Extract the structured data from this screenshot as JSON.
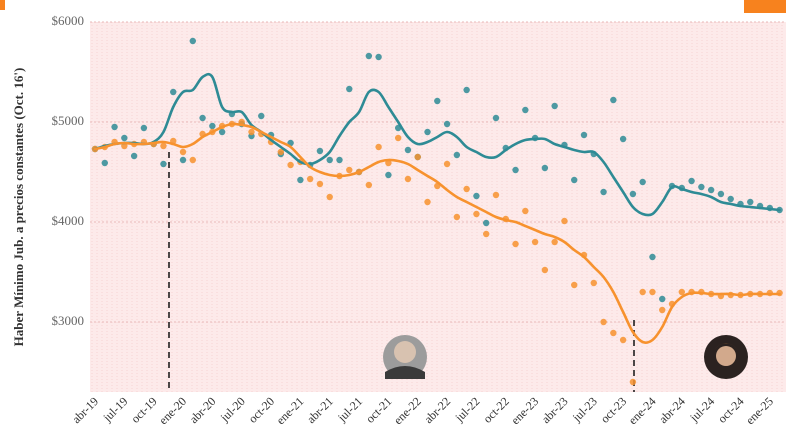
{
  "chart_data": {
    "type": "scatter",
    "y_label": "Haber Mínimo Jub. a precios constantes (Oct. 16')",
    "categories": [
      "abr-19",
      null,
      null,
      "jul-19",
      null,
      null,
      "oct-19",
      null,
      null,
      "ene-20",
      null,
      null,
      "abr-20",
      null,
      null,
      "jul-20",
      null,
      null,
      "oct-20",
      null,
      null,
      "ene-21",
      null,
      null,
      "abr-21",
      null,
      null,
      "jul-21",
      null,
      null,
      "oct-21",
      null,
      null,
      "ene-22",
      null,
      null,
      "abr-22",
      null,
      null,
      "jul-22",
      null,
      null,
      "oct-22",
      null,
      null,
      "ene-23",
      null,
      null,
      "abr-23",
      null,
      null,
      "jul-23",
      null,
      null,
      "oct-23",
      null,
      null,
      "ene-24",
      null,
      null,
      "abr-24",
      null,
      null,
      "jul-24",
      null,
      null,
      "oct-24",
      null,
      null,
      "ene-25",
      null
    ],
    "ylim": [
      2300,
      6000
    ],
    "yticks": [
      {
        "value": 3000,
        "label": "$3000"
      },
      {
        "value": 4000,
        "label": "$4000"
      },
      {
        "value": 5000,
        "label": "$5000"
      },
      {
        "value": 6000,
        "label": "$6000"
      }
    ],
    "series": [
      {
        "color": "#2e8b95",
        "values": [
          4730,
          4590,
          4950,
          4840,
          4660,
          4940,
          4780,
          4580,
          5300,
          4620,
          5810,
          5040,
          4960,
          4900,
          5080,
          4980,
          4860,
          5060,
          4870,
          4680,
          4790,
          4420,
          4570,
          4710,
          4620,
          4620,
          5330,
          4500,
          5660,
          5650,
          4470,
          4940,
          4720,
          4650,
          4900,
          5210,
          4980,
          4670,
          5320,
          4260,
          3990,
          5040,
          4740,
          4520,
          5120,
          4840,
          4540,
          5160,
          4770,
          4420,
          4870,
          4680,
          4300,
          5220,
          4830,
          4280,
          4400,
          3650,
          3230,
          4360,
          4340,
          4410,
          4350,
          4320,
          4280,
          4230,
          4180,
          4200,
          4160,
          4140,
          4120
        ],
        "trend": [
          4730,
          4760,
          4780,
          4790,
          4790,
          4780,
          4800,
          4900,
          5150,
          5300,
          5320,
          5450,
          5450,
          5150,
          5100,
          5100,
          4970,
          4900,
          4820,
          4750,
          4680,
          4600,
          4580,
          4620,
          4700,
          4860,
          5000,
          5100,
          5300,
          5300,
          5150,
          5000,
          4850,
          4780,
          4800,
          4850,
          4900,
          4850,
          4750,
          4700,
          4650,
          4650,
          4720,
          4780,
          4820,
          4830,
          4830,
          4780,
          4750,
          4720,
          4700,
          4700,
          4600,
          4450,
          4300,
          4150,
          4080,
          4080,
          4200,
          4350,
          4330,
          4300,
          4280,
          4250,
          4200,
          4180,
          4160,
          4150,
          4140,
          4130,
          4120
        ]
      },
      {
        "color": "#f7922e",
        "values": [
          4730,
          4750,
          4800,
          4760,
          4780,
          4800,
          4780,
          4760,
          4810,
          4700,
          4620,
          4880,
          4900,
          4960,
          4980,
          5000,
          4900,
          4880,
          4800,
          4700,
          4570,
          4600,
          4430,
          4380,
          4250,
          4460,
          4520,
          4500,
          4370,
          4750,
          4590,
          4840,
          4430,
          4650,
          4200,
          4360,
          4580,
          4050,
          4330,
          4080,
          3880,
          4270,
          4030,
          3780,
          4110,
          3800,
          3520,
          3800,
          4010,
          3370,
          3670,
          3390,
          3000,
          2890,
          2820,
          2400,
          3300,
          3300,
          3120,
          3180,
          3300,
          3300,
          3300,
          3280,
          3260,
          3270,
          3270,
          3280,
          3280,
          3290,
          3290
        ],
        "trend": [
          4730,
          4750,
          4780,
          4790,
          4780,
          4780,
          4790,
          4800,
          4780,
          4750,
          4780,
          4850,
          4900,
          4950,
          4980,
          4970,
          4950,
          4900,
          4850,
          4800,
          4750,
          4650,
          4550,
          4500,
          4470,
          4460,
          4470,
          4500,
          4550,
          4600,
          4620,
          4610,
          4580,
          4520,
          4460,
          4400,
          4320,
          4250,
          4200,
          4150,
          4100,
          4050,
          4020,
          4000,
          3960,
          3920,
          3880,
          3850,
          3800,
          3720,
          3650,
          3550,
          3450,
          3300,
          3100,
          2900,
          2800,
          2820,
          2950,
          3150,
          3250,
          3290,
          3290,
          3280,
          3280,
          3280,
          3270,
          3280,
          3280,
          3280,
          3280
        ]
      }
    ]
  }
}
